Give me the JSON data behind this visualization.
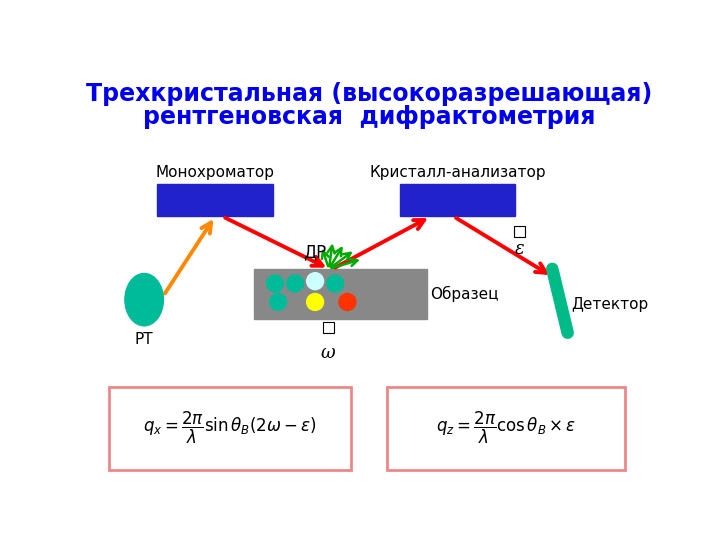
{
  "title_line1": "Трехкристальная (высокоразрешающая)",
  "title_line2": "рентгеновская  дифрактометрия",
  "title_color": "#0000EE",
  "title_fontsize": 17,
  "bg_color": "#ffffff",
  "label_monochromator": "Монохроматор",
  "label_crystal_analyzer": "Кристалл-анализатор",
  "label_sample": "Образец",
  "label_detector": "Детектор",
  "label_rt": "РТ",
  "label_dr": "ДР",
  "label_omega": "ω",
  "label_epsilon": "ε",
  "blue_color": "#2222CC",
  "orange_color": "#FF8800",
  "red_color": "#FF0000",
  "green_color": "#00AA00",
  "teal_color": "#00BB99",
  "gray_color": "#888888",
  "cyan_color": "#AAFFFF",
  "yellow_color": "#FFFF00",
  "red_dot_color": "#FF3300",
  "formula_box_color": "#EE8888",
  "label_color": "#000000",
  "detector_color": "#00BB88",
  "label_fontsize": 11,
  "formula_fontsize": 12
}
